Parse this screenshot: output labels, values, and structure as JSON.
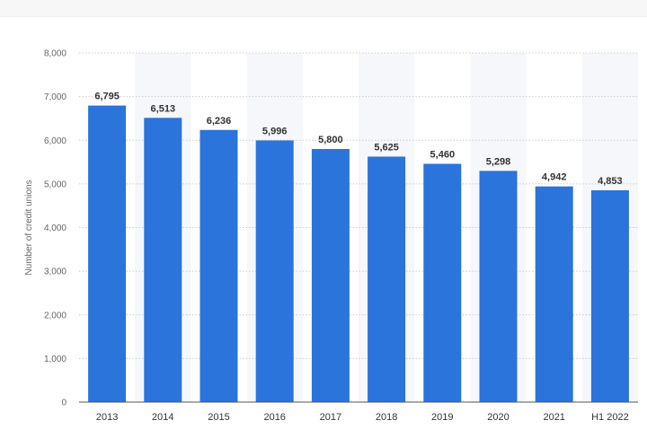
{
  "chart_data": {
    "type": "bar",
    "title": "",
    "xlabel": "",
    "ylabel": "Number of credit unions",
    "categories": [
      "2013",
      "2014",
      "2015",
      "2016",
      "2017",
      "2018",
      "2019",
      "2020",
      "2021",
      "H1 2022"
    ],
    "values": [
      6795,
      6513,
      6236,
      5996,
      5800,
      5625,
      5460,
      5298,
      4942,
      4853
    ],
    "value_labels": [
      "6,795",
      "6,513",
      "6,236",
      "5,996",
      "5,800",
      "5,625",
      "5,460",
      "5,298",
      "4,942",
      "4,853"
    ],
    "ylim": [
      0,
      8000
    ],
    "yticks": [
      0,
      1000,
      2000,
      3000,
      4000,
      5000,
      6000,
      7000,
      8000
    ],
    "ytick_labels": [
      "0",
      "1,000",
      "2,000",
      "3,000",
      "4,000",
      "5,000",
      "6,000",
      "7,000",
      "8,000"
    ],
    "grid": true,
    "legend": "none",
    "bar_color": "#2a74db",
    "band_color": "#f5f7fb",
    "grid_color": "#cccccc"
  }
}
